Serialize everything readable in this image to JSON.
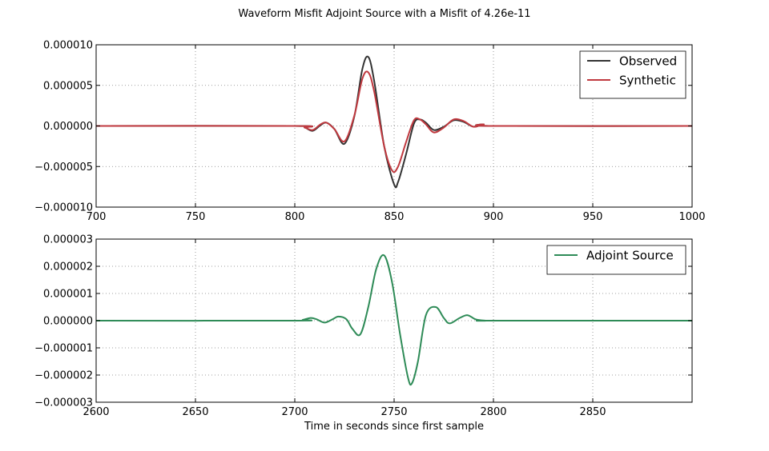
{
  "figure": {
    "suptitle": "Waveform Misfit Adjoint Source with a Misfit of 4.26e-11"
  },
  "chart_data": [
    {
      "type": "line",
      "title": "",
      "xlabel": "",
      "ylabel": "",
      "xlim": [
        700,
        1000
      ],
      "ylim": [
        -1e-05,
        1e-05
      ],
      "x_ticks": [
        700,
        750,
        800,
        850,
        900,
        950,
        1000
      ],
      "x_tick_labels": [
        "700",
        "750",
        "800",
        "850",
        "900",
        "950",
        "1000"
      ],
      "y_ticks": [
        1e-05,
        5e-06,
        0,
        -5e-06,
        -1e-05
      ],
      "y_tick_labels": [
        "0.000010",
        "0.000005",
        "0.000000",
        "−0.000005",
        "−0.000010"
      ],
      "grid": true,
      "legend_position": "top-right",
      "series": [
        {
          "name": "Observed",
          "color": "#333333",
          "x": [
            700,
            800,
            805,
            809,
            813,
            816,
            820,
            825,
            830,
            834,
            837,
            840,
            845,
            850,
            852,
            856,
            860,
            863,
            866,
            870,
            875,
            880,
            885,
            890,
            895,
            900,
            1000
          ],
          "y": [
            0,
            0,
            -2e-07,
            -6e-07,
            1e-07,
            4e-07,
            -4e-07,
            -2.2e-06,
            1.2e-06,
            7e-06,
            8.5e-06,
            5.5e-06,
            -2.5e-06,
            -7.2e-06,
            -6.9e-06,
            -3.5e-06,
            3e-07,
            8e-07,
            4e-07,
            -5e-07,
            -1e-07,
            7e-07,
            5e-07,
            -1e-07,
            2e-07,
            0,
            0
          ]
        },
        {
          "name": "Synthetic",
          "color": "#c0393f",
          "x": [
            700,
            800,
            805,
            809,
            813,
            816,
            820,
            825,
            830,
            834,
            837,
            840,
            845,
            849,
            852,
            856,
            860,
            863,
            866,
            870,
            875,
            880,
            885,
            890,
            895,
            900,
            1000
          ],
          "y": [
            0,
            0,
            -2e-07,
            -5e-07,
            2e-07,
            4e-07,
            -4e-07,
            -1.9e-06,
            1.3e-06,
            5.8e-06,
            6.6e-06,
            4.2e-06,
            -2.5e-06,
            -5.5e-06,
            -5e-06,
            -2e-06,
            7e-07,
            8e-07,
            2e-07,
            -8e-07,
            -2e-07,
            8e-07,
            6e-07,
            -1e-07,
            2e-07,
            0,
            0
          ]
        }
      ]
    },
    {
      "type": "line",
      "title": "",
      "xlabel": "Time in seconds since first sample",
      "ylabel": "",
      "xlim": [
        2600,
        2900
      ],
      "ylim": [
        -3e-06,
        3e-06
      ],
      "x_ticks": [
        2600,
        2650,
        2700,
        2750,
        2800,
        2850
      ],
      "x_tick_labels": [
        "2600",
        "2650",
        "2700",
        "2750",
        "2800",
        "2850"
      ],
      "y_ticks": [
        3e-06,
        2e-06,
        1e-06,
        0,
        -1e-06,
        -2e-06,
        -3e-06
      ],
      "y_tick_labels": [
        "0.000003",
        "0.000002",
        "0.000001",
        "0.000000",
        "−0.000001",
        "−0.000002",
        "−0.000003"
      ],
      "grid": true,
      "legend_position": "top-right",
      "series": [
        {
          "name": "Adjoint Source",
          "color": "#2e8b57",
          "x": [
            2600,
            2700,
            2704,
            2708,
            2711,
            2715,
            2719,
            2722,
            2726,
            2729,
            2733,
            2737,
            2741,
            2745,
            2749,
            2753,
            2757,
            2759,
            2762,
            2766,
            2771,
            2775,
            2778,
            2783,
            2787,
            2791,
            2796,
            2800,
            2900
          ],
          "y": [
            0,
            0,
            3e-08,
            1e-07,
            5e-08,
            -7e-08,
            5e-08,
            1.5e-07,
            5e-08,
            -3e-07,
            -5e-07,
            5e-07,
            1.9e-06,
            2.4e-06,
            1.4e-06,
            -5e-07,
            -2.1e-06,
            -2.3e-06,
            -1.5e-06,
            2e-07,
            5e-07,
            1e-07,
            -1e-07,
            1e-07,
            2e-07,
            5e-08,
            0,
            0,
            0
          ]
        }
      ]
    }
  ]
}
